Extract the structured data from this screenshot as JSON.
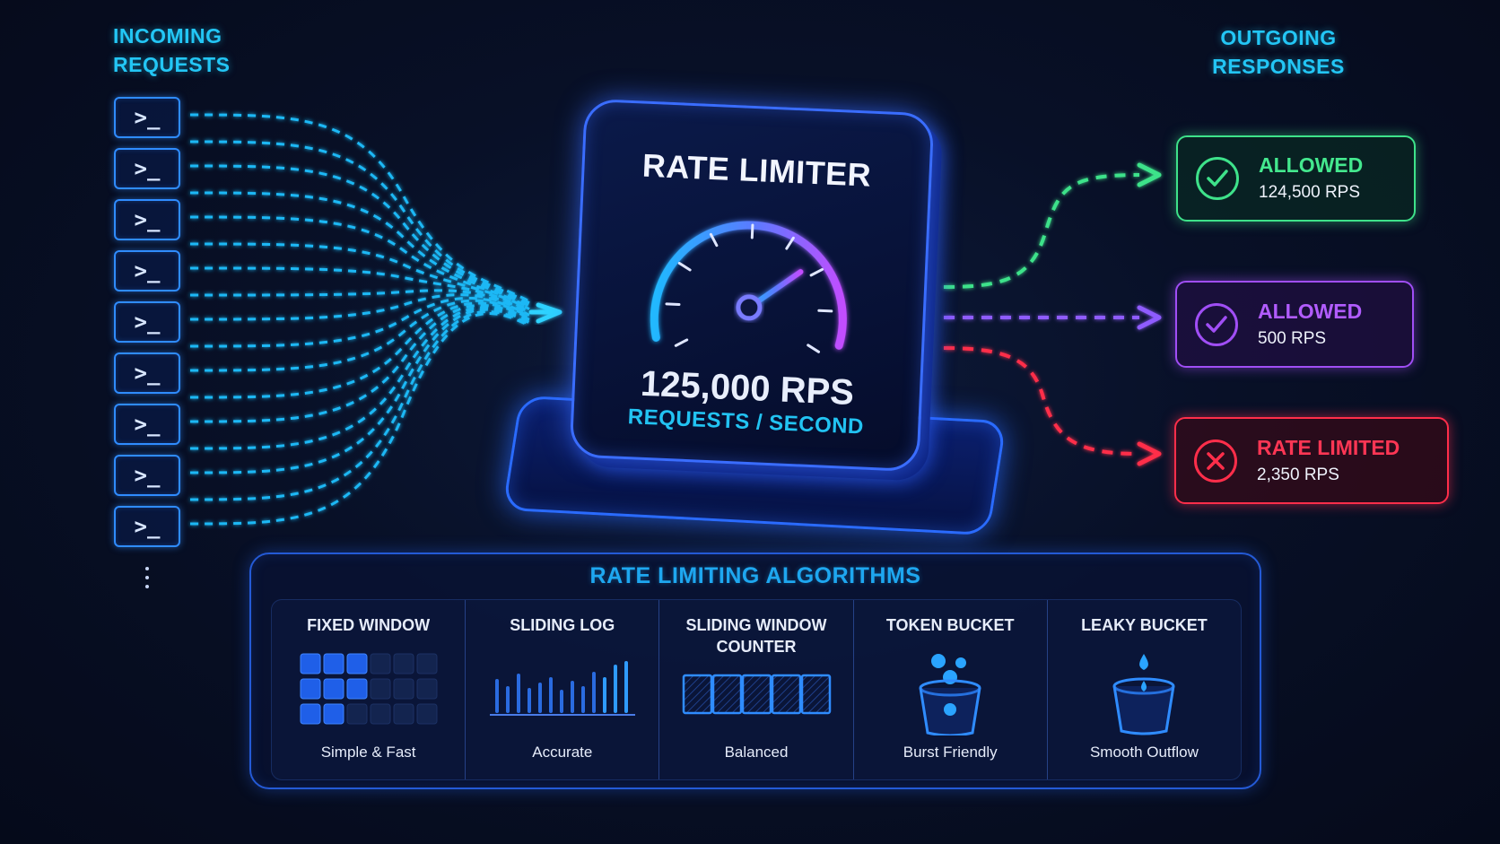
{
  "incoming": {
    "heading_line1": "INCOMING",
    "heading_line2": "REQUESTS",
    "terminal_glyph": ">_",
    "terminal_count": 9,
    "stream_color": "#1fb8f5"
  },
  "outgoing": {
    "heading_line1": "OUTGOING",
    "heading_line2": "RESPONSES",
    "responses": [
      {
        "status": "ALLOWED",
        "rate": "124,500 RPS",
        "color": "#3ee28a",
        "icon": "check-icon"
      },
      {
        "status": "ALLOWED",
        "rate": "500 RPS",
        "color": "#a04ef5",
        "icon": "check-icon"
      },
      {
        "status": "RATE LIMITED",
        "rate": "2,350 RPS",
        "color": "#ff2e4a",
        "icon": "x-icon"
      }
    ]
  },
  "limiter": {
    "title": "RATE LIMITER",
    "value": "125,000 RPS",
    "unit_label": "REQUESTS / SECOND",
    "gauge_level": 0.72
  },
  "algorithms": {
    "title": "RATE LIMITING ALGORITHMS",
    "items": [
      {
        "name": "FIXED WINDOW",
        "desc": "Simple & Fast",
        "icon": "window-grid-icon"
      },
      {
        "name": "SLIDING LOG",
        "desc": "Accurate",
        "icon": "log-bars-icon"
      },
      {
        "name": "SLIDING WINDOW COUNTER",
        "name_line1": "SLIDING WINDOW",
        "name_line2": "COUNTER",
        "desc": "Balanced",
        "icon": "counter-cells-icon"
      },
      {
        "name": "TOKEN BUCKET",
        "desc": "Burst Friendly",
        "icon": "token-bucket-icon"
      },
      {
        "name": "LEAKY BUCKET",
        "desc": "Smooth Outflow",
        "icon": "leaky-bucket-icon"
      }
    ]
  }
}
